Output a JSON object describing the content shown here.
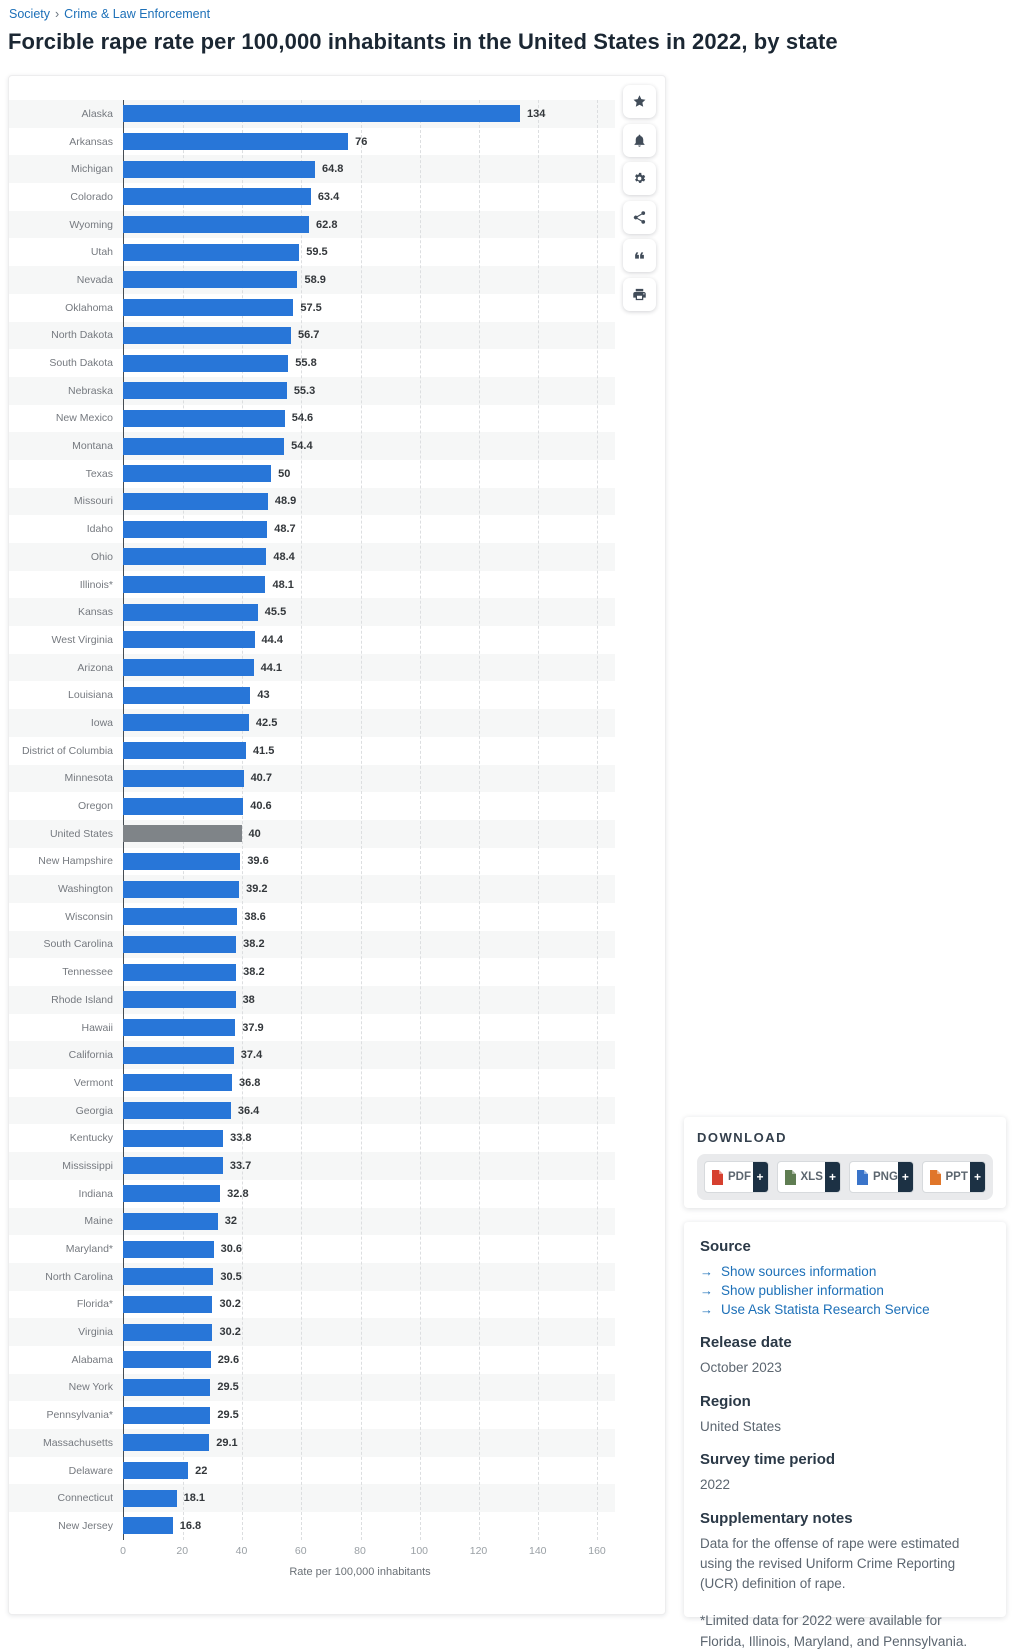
{
  "breadcrumb": {
    "items": [
      "Society",
      "Crime & Law Enforcement"
    ],
    "separator": "›"
  },
  "page_title": "Forcible rape rate per 100,000 inhabitants in the United States in 2022, by state",
  "toolbar": {
    "icons": [
      "star-icon",
      "bell-icon",
      "gear-icon",
      "share-icon",
      "cite-quote-icon",
      "print-icon"
    ]
  },
  "chart_data": {
    "type": "bar",
    "orientation": "horizontal",
    "title": "Forcible rape rate per 100,000 inhabitants in the United States in 2022, by state",
    "categories": [
      "Alaska",
      "Arkansas",
      "Michigan",
      "Colorado",
      "Wyoming",
      "Utah",
      "Nevada",
      "Oklahoma",
      "North Dakota",
      "South Dakota",
      "Nebraska",
      "New Mexico",
      "Montana",
      "Texas",
      "Missouri",
      "Idaho",
      "Ohio",
      "Illinois*",
      "Kansas",
      "West Virginia",
      "Arizona",
      "Louisiana",
      "Iowa",
      "District of Columbia",
      "Minnesota",
      "Oregon",
      "United States",
      "New Hampshire",
      "Washington",
      "Wisconsin",
      "South Carolina",
      "Tennessee",
      "Rhode Island",
      "Hawaii",
      "California",
      "Vermont",
      "Georgia",
      "Kentucky",
      "Mississippi",
      "Indiana",
      "Maine",
      "Maryland*",
      "North Carolina",
      "Florida*",
      "Virginia",
      "Alabama",
      "New York",
      "Pennsylvania*",
      "Massachusetts",
      "Delaware",
      "Connecticut",
      "New Jersey"
    ],
    "values": [
      134,
      76,
      64.8,
      63.4,
      62.8,
      59.5,
      58.9,
      57.5,
      56.7,
      55.8,
      55.3,
      54.6,
      54.4,
      50,
      48.9,
      48.7,
      48.4,
      48.1,
      45.5,
      44.4,
      44.1,
      43,
      42.5,
      41.5,
      40.7,
      40.6,
      40,
      39.6,
      39.2,
      38.6,
      38.2,
      38.2,
      38,
      37.9,
      37.4,
      36.8,
      36.4,
      33.8,
      33.7,
      32.8,
      32,
      30.6,
      30.5,
      30.2,
      30.2,
      29.6,
      29.5,
      29.5,
      29.1,
      22,
      18.1,
      16.8
    ],
    "bar_color": "#2876d8",
    "highlight_category": "United States",
    "highlight_color": "#7f8488",
    "xlabel": "Rate per 100,000 inhabitants",
    "xlim": [
      0,
      160
    ],
    "xticks": [
      0,
      20,
      40,
      60,
      80,
      100,
      120,
      140,
      160
    ],
    "grid": "vertical-dashed",
    "legend": "none",
    "value_labels": true
  },
  "download": {
    "title": "DOWNLOAD",
    "buttons": [
      {
        "label": "PDF",
        "plus": "+",
        "icon": "pdf-file-icon",
        "icon_color": "#d6402f"
      },
      {
        "label": "XLS",
        "plus": "+",
        "icon": "xls-file-icon",
        "icon_color": "#5f7d52"
      },
      {
        "label": "PNG",
        "plus": "+",
        "icon": "png-file-icon",
        "icon_color": "#3a74c9"
      },
      {
        "label": "PPT",
        "plus": "+",
        "icon": "ppt-file-icon",
        "icon_color": "#e0762a"
      }
    ]
  },
  "source_panel": {
    "source_title": "Source",
    "link_arrow": "→",
    "links": [
      "Show sources information",
      "Show publisher information",
      "Use Ask Statista Research Service"
    ],
    "release_date_label": "Release date",
    "release_date": "October 2023",
    "region_label": "Region",
    "region": "United States",
    "survey_label": "Survey time period",
    "survey": "2022",
    "notes_label": "Supplementary notes",
    "notes": [
      "Data for the offense of rape were estimated using the revised Uniform Crime Reporting (UCR) definition of rape.",
      "*Limited data for 2022 were available for Florida, Illinois, Maryland, and Pennsylvania."
    ]
  },
  "theme": {
    "accent_blue": "#2876d8",
    "link_blue": "#1d70b8",
    "stripe_gray": "#f6f7f7"
  }
}
